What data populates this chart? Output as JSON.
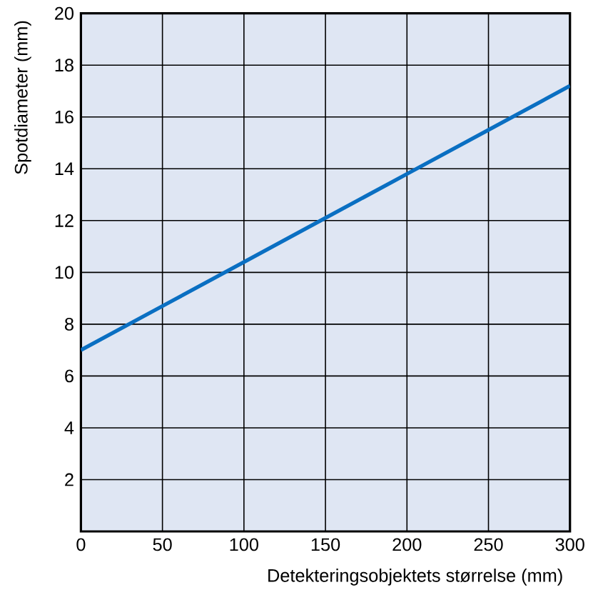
{
  "chart_data": {
    "type": "line",
    "xlabel": "Detekteringsobjektets størrelse (mm)",
    "ylabel": "Spotdiameter (mm)",
    "x": [
      0,
      50,
      100,
      150,
      200,
      250,
      300
    ],
    "series": [
      {
        "color": "#0a6fc2",
        "values": [
          7,
          8.7,
          10.4,
          12.1,
          13.8,
          15.5,
          17.2
        ]
      }
    ],
    "xlim": [
      0,
      300
    ],
    "ylim": [
      0,
      20
    ],
    "xticks": [
      0,
      50,
      100,
      150,
      200,
      250,
      300
    ],
    "yticks": [
      {
        "value": 0,
        "label": null
      },
      2,
      4,
      6,
      8,
      10,
      12,
      14,
      16,
      18,
      20
    ],
    "grid": true,
    "marker": "none",
    "line_style": "solid"
  }
}
